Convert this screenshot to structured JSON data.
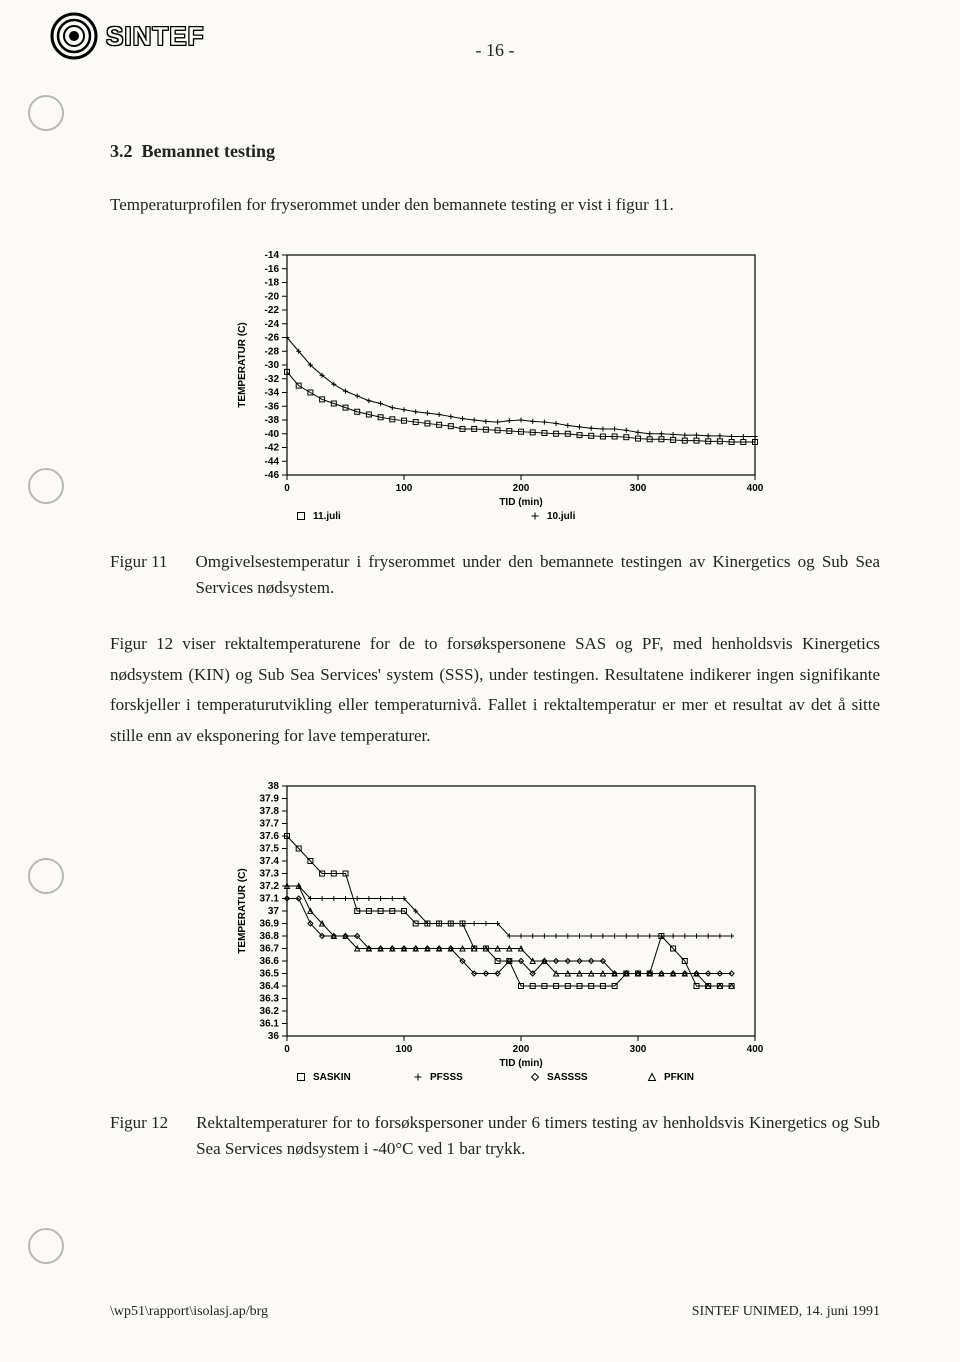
{
  "header": {
    "brand": "SINTEF",
    "page_number": "- 16 -"
  },
  "section": {
    "number": "3.2",
    "title": "Bemannet testing"
  },
  "para1": "Temperaturprofilen for fryserommet under den bemannete testing er vist i figur 11.",
  "chart1": {
    "type": "line",
    "xlabel": "TID (min)",
    "ylabel": "TEMPERATUR (C)",
    "xlim": [
      0,
      400
    ],
    "ylim": [
      -46,
      -14
    ],
    "xtick_step": 100,
    "ytick_step": 2,
    "background_color": "#fbfaf7",
    "axis_color": "#000000",
    "tick_fontsize": 10,
    "label_fontsize": 10,
    "series": [
      {
        "name": "11.juli",
        "marker": "square",
        "color": "#000000",
        "x": [
          0,
          10,
          20,
          30,
          40,
          50,
          60,
          70,
          80,
          90,
          100,
          110,
          120,
          130,
          140,
          150,
          160,
          170,
          180,
          190,
          200,
          210,
          220,
          230,
          240,
          250,
          260,
          270,
          280,
          290,
          300,
          310,
          320,
          330,
          340,
          350,
          360,
          370,
          380,
          390,
          400
        ],
        "y": [
          -31,
          -33,
          -34,
          -35,
          -35.6,
          -36.2,
          -36.8,
          -37.2,
          -37.6,
          -37.9,
          -38.1,
          -38.3,
          -38.5,
          -38.7,
          -38.9,
          -39.3,
          -39.3,
          -39.4,
          -39.5,
          -39.6,
          -39.7,
          -39.8,
          -39.9,
          -40,
          -40,
          -40.2,
          -40.3,
          -40.4,
          -40.4,
          -40.5,
          -40.7,
          -40.8,
          -40.8,
          -40.9,
          -41,
          -41,
          -41.1,
          -41.1,
          -41.2,
          -41.2,
          -41.2
        ]
      },
      {
        "name": "10.juli",
        "marker": "plus",
        "color": "#000000",
        "x": [
          0,
          10,
          20,
          30,
          40,
          50,
          60,
          70,
          80,
          90,
          100,
          110,
          120,
          130,
          140,
          150,
          160,
          170,
          180,
          190,
          200,
          210,
          220,
          230,
          240,
          250,
          260,
          270,
          280,
          290,
          300,
          310,
          320,
          330,
          340,
          350,
          360,
          370,
          380,
          390,
          400
        ],
        "y": [
          -26,
          -28,
          -30,
          -31.5,
          -32.8,
          -33.8,
          -34.5,
          -35.2,
          -35.6,
          -36.2,
          -36.5,
          -36.8,
          -37,
          -37.2,
          -37.5,
          -37.8,
          -38,
          -38.2,
          -38.3,
          -38.1,
          -38,
          -38.2,
          -38.3,
          -38.5,
          -38.8,
          -39,
          -39.2,
          -39.3,
          -39.3,
          -39.5,
          -39.8,
          -40,
          -40,
          -40.1,
          -40.2,
          -40.2,
          -40.3,
          -40.3,
          -40.4,
          -40.4,
          -40.4
        ]
      }
    ],
    "legend": [
      {
        "marker": "square",
        "label": "11.juli"
      },
      {
        "marker": "plus",
        "label": "10.juli"
      }
    ]
  },
  "caption1": {
    "num": "Figur 11",
    "text": "Omgivelsestemperatur i fryserommet under den bemannete testingen av Kinergetics og Sub Sea Services nødsystem."
  },
  "para2": "Figur 12 viser rektaltemperaturene for de to forsøkspersonene SAS og PF, med henholdsvis Kinergetics nødsystem (KIN) og Sub Sea Services' system (SSS), under testingen. Resultatene indikerer ingen signifikante forskjeller i temperaturutvikling eller temperaturnivå. Fallet i rektaltemperatur er mer et resultat av det å sitte stille enn av eksponering for lave temperaturer.",
  "chart2": {
    "type": "line",
    "xlabel": "TID (min)",
    "ylabel": "TEMPERATUR (C)",
    "xlim": [
      0,
      400
    ],
    "ylim": [
      36,
      38
    ],
    "xtick_step": 100,
    "ytick_step": 0.1,
    "background_color": "#fbfaf7",
    "axis_color": "#000000",
    "tick_fontsize": 10,
    "label_fontsize": 10,
    "series": [
      {
        "name": "SASKIN",
        "marker": "square",
        "color": "#000000",
        "x": [
          0,
          10,
          20,
          30,
          40,
          50,
          60,
          70,
          80,
          90,
          100,
          110,
          120,
          130,
          140,
          150,
          160,
          170,
          180,
          190,
          200,
          210,
          220,
          230,
          240,
          250,
          260,
          270,
          280,
          290,
          300,
          310,
          320,
          330,
          340,
          350,
          360,
          370,
          380
        ],
        "y": [
          37.6,
          37.5,
          37.4,
          37.3,
          37.3,
          37.3,
          37.0,
          37.0,
          37.0,
          37.0,
          37.0,
          36.9,
          36.9,
          36.9,
          36.9,
          36.9,
          36.7,
          36.7,
          36.6,
          36.6,
          36.4,
          36.4,
          36.4,
          36.4,
          36.4,
          36.4,
          36.4,
          36.4,
          36.4,
          36.5,
          36.5,
          36.5,
          36.8,
          36.7,
          36.6,
          36.4,
          36.4,
          36.4,
          36.4
        ]
      },
      {
        "name": "PFSSS",
        "marker": "plus",
        "color": "#000000",
        "x": [
          0,
          10,
          20,
          30,
          40,
          50,
          60,
          70,
          80,
          90,
          100,
          110,
          120,
          130,
          140,
          150,
          160,
          170,
          180,
          190,
          200,
          210,
          220,
          230,
          240,
          250,
          260,
          270,
          280,
          290,
          300,
          310,
          320,
          330,
          340,
          350,
          360,
          370,
          380
        ],
        "y": [
          37.2,
          37.2,
          37.1,
          37.1,
          37.1,
          37.1,
          37.1,
          37.1,
          37.1,
          37.1,
          37.1,
          37.0,
          36.9,
          36.9,
          36.9,
          36.9,
          36.9,
          36.9,
          36.9,
          36.8,
          36.8,
          36.8,
          36.8,
          36.8,
          36.8,
          36.8,
          36.8,
          36.8,
          36.8,
          36.8,
          36.8,
          36.8,
          36.8,
          36.8,
          36.8,
          36.8,
          36.8,
          36.8,
          36.8
        ]
      },
      {
        "name": "SASSSS",
        "marker": "diamond",
        "color": "#000000",
        "x": [
          0,
          10,
          20,
          30,
          40,
          50,
          60,
          70,
          80,
          90,
          100,
          110,
          120,
          130,
          140,
          150,
          160,
          170,
          180,
          190,
          200,
          210,
          220,
          230,
          240,
          250,
          260,
          270,
          280,
          290,
          300,
          310,
          320,
          330,
          340,
          350,
          360,
          370,
          380
        ],
        "y": [
          37.1,
          37.1,
          36.9,
          36.8,
          36.8,
          36.8,
          36.8,
          36.7,
          36.7,
          36.7,
          36.7,
          36.7,
          36.7,
          36.7,
          36.7,
          36.6,
          36.5,
          36.5,
          36.5,
          36.6,
          36.6,
          36.5,
          36.6,
          36.6,
          36.6,
          36.6,
          36.6,
          36.6,
          36.5,
          36.5,
          36.5,
          36.5,
          36.5,
          36.5,
          36.5,
          36.5,
          36.5,
          36.5,
          36.5
        ]
      },
      {
        "name": "PFKIN",
        "marker": "triangle",
        "color": "#000000",
        "x": [
          0,
          10,
          20,
          30,
          40,
          50,
          60,
          70,
          80,
          90,
          100,
          110,
          120,
          130,
          140,
          150,
          160,
          170,
          180,
          190,
          200,
          210,
          220,
          230,
          240,
          250,
          260,
          270,
          280,
          290,
          300,
          310,
          320,
          330,
          340,
          350,
          360,
          370,
          380
        ],
        "y": [
          37.2,
          37.2,
          37.0,
          36.9,
          36.8,
          36.8,
          36.7,
          36.7,
          36.7,
          36.7,
          36.7,
          36.7,
          36.7,
          36.7,
          36.7,
          36.7,
          36.7,
          36.7,
          36.7,
          36.7,
          36.7,
          36.6,
          36.6,
          36.5,
          36.5,
          36.5,
          36.5,
          36.5,
          36.5,
          36.5,
          36.5,
          36.5,
          36.5,
          36.5,
          36.5,
          36.5,
          36.4,
          36.4,
          36.4
        ]
      }
    ],
    "legend": [
      {
        "marker": "square",
        "label": "SASKIN"
      },
      {
        "marker": "plus",
        "label": "PFSSS"
      },
      {
        "marker": "diamond",
        "label": "SASSSS"
      },
      {
        "marker": "triangle",
        "label": "PFKIN"
      }
    ]
  },
  "caption2": {
    "num": "Figur 12",
    "text": "Rektaltemperaturer for to forsøkspersoner under 6 timers testing av henholdsvis Kinergetics og Sub Sea Services nødsystem i -40°C ved 1 bar trykk."
  },
  "footer": {
    "left": "\\wp51\\rapport\\isolasj.ap/brg",
    "right": "SINTEF UNIMED, 14. juni 1991"
  }
}
